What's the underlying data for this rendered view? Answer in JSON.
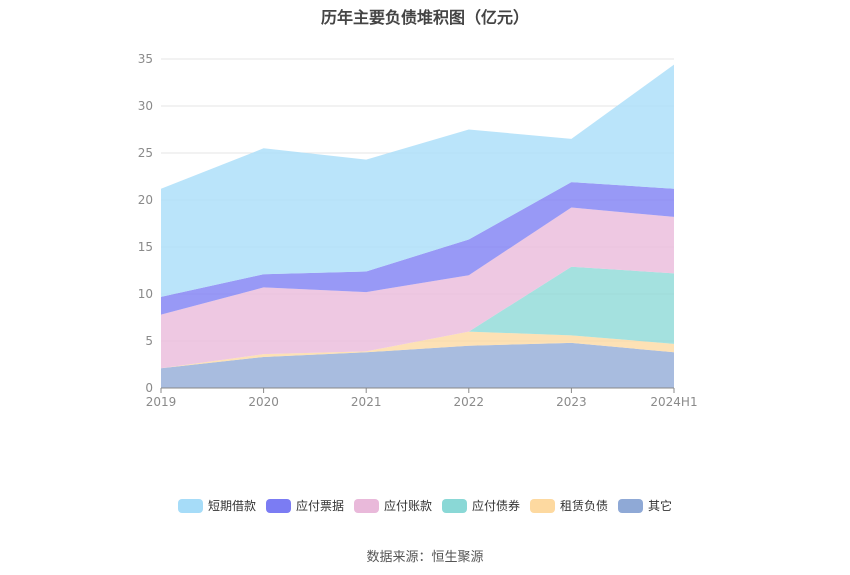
{
  "chart_data": {
    "type": "area",
    "title": "历年主要负债堆积图（亿元）",
    "source": "数据来源：恒生聚源",
    "categories": [
      "2019",
      "2020",
      "2021",
      "2022",
      "2023",
      "2024H1"
    ],
    "ylim": [
      0,
      35
    ],
    "yticks": [
      "0",
      "5",
      "10",
      "15",
      "20",
      "25",
      "30",
      "35"
    ],
    "stacked": true,
    "grid": true,
    "legend_position": "bottom",
    "series": [
      {
        "name": "其它",
        "color": "#8fa9d6",
        "values": [
          2.1,
          3.3,
          3.8,
          4.5,
          4.8,
          3.8
        ]
      },
      {
        "name": "租赁负债",
        "color": "#fdd9a0",
        "values": [
          0.0,
          0.3,
          0.1,
          1.5,
          0.8,
          0.9
        ]
      },
      {
        "name": "应付债券",
        "color": "#8ad8d6",
        "values": [
          0.0,
          0.0,
          0.0,
          0.0,
          7.3,
          7.5
        ]
      },
      {
        "name": "应付账款",
        "color": "#e9b9da",
        "values": [
          5.7,
          7.1,
          6.3,
          6.0,
          6.3,
          6.0
        ]
      },
      {
        "name": "应付票据",
        "color": "#7b7cf3",
        "values": [
          1.9,
          1.4,
          2.2,
          3.8,
          2.7,
          3.0
        ]
      },
      {
        "name": "短期借款",
        "color": "#a6dcf8",
        "values": [
          11.5,
          13.4,
          11.9,
          11.7,
          4.6,
          13.2
        ]
      }
    ]
  }
}
